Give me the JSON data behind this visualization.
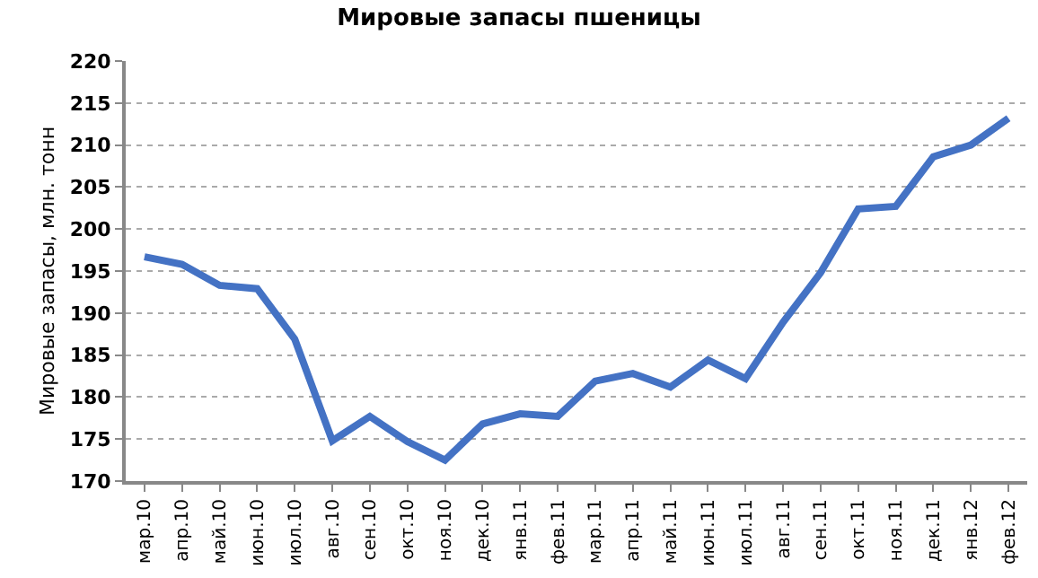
{
  "chart_data": {
    "type": "line",
    "title": "Мировые запасы пшеницы",
    "ylabel": "Мировые запасы, млн. тонн",
    "categories": [
      "мар.10",
      "апр.10",
      "май.10",
      "июн.10",
      "июл.10",
      "авг.10",
      "сен.10",
      "окт.10",
      "ноя.10",
      "дек.10",
      "янв.11",
      "фев.11",
      "мар.11",
      "апр.11",
      "май.11",
      "июн.11",
      "июл.11",
      "авг.11",
      "сен.11",
      "окт.11",
      "ноя.11",
      "дек.11",
      "янв.12",
      "фев.12"
    ],
    "series": [
      {
        "color": "#4472c4",
        "values": [
          196.7,
          195.8,
          193.3,
          192.9,
          186.9,
          174.8,
          177.7,
          174.7,
          172.5,
          176.8,
          178.0,
          177.7,
          181.9,
          182.8,
          181.2,
          184.4,
          182.2,
          188.9,
          194.8,
          202.4,
          202.7,
          208.6,
          210.0,
          213.2
        ]
      }
    ],
    "ylim": [
      170,
      220
    ],
    "yticks": [
      170,
      175,
      180,
      185,
      190,
      195,
      200,
      205,
      210,
      215,
      220
    ],
    "grid": "y",
    "marker": "none",
    "line_style": "solid"
  }
}
